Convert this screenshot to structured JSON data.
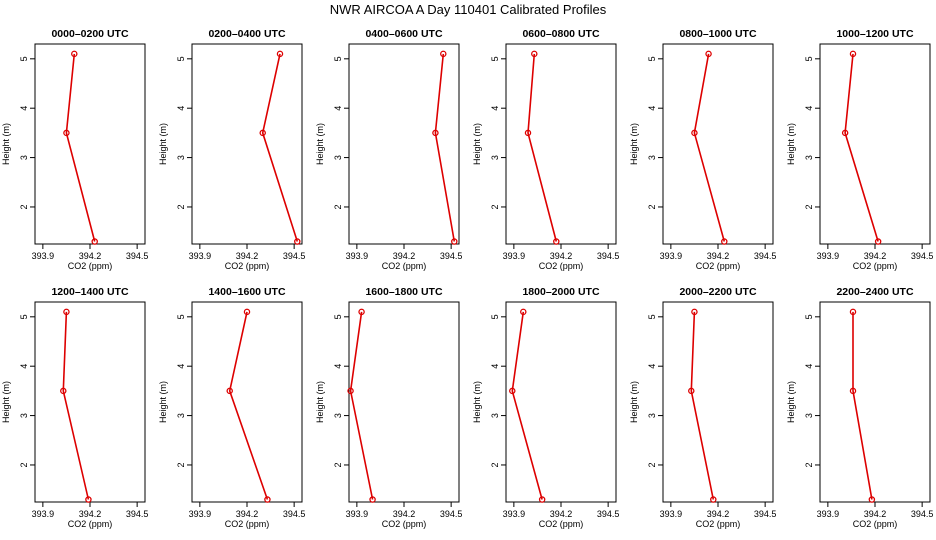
{
  "title": "NWR AIRCOA A  Day 110401  Calibrated Profiles",
  "colors": {
    "series": "#dd0000",
    "axes": "#000000",
    "background": "#ffffff"
  },
  "chart_data": [
    {
      "type": "line",
      "title": "0000–0200 UTC",
      "xlabel": "CO2 (ppm)",
      "ylabel": "Height (m)",
      "xlim": [
        393.85,
        394.55
      ],
      "ylim": [
        1.25,
        5.3
      ],
      "xticks": [
        "393.9",
        "394.2",
        "394.5"
      ],
      "yticks": [
        "2",
        "3",
        "4",
        "5"
      ],
      "series": [
        {
          "x": [
            394.23,
            394.05,
            394.1
          ],
          "y": [
            1.3,
            3.5,
            5.1
          ]
        }
      ]
    },
    {
      "type": "line",
      "title": "0200–0400 UTC",
      "xlabel": "CO2 (ppm)",
      "ylabel": "Height (m)",
      "xlim": [
        393.85,
        394.55
      ],
      "ylim": [
        1.25,
        5.3
      ],
      "xticks": [
        "393.9",
        "394.2",
        "394.5"
      ],
      "yticks": [
        "2",
        "3",
        "4",
        "5"
      ],
      "series": [
        {
          "x": [
            394.52,
            394.3,
            394.41
          ],
          "y": [
            1.3,
            3.5,
            5.1
          ]
        }
      ]
    },
    {
      "type": "line",
      "title": "0400–0600 UTC",
      "xlabel": "CO2 (ppm)",
      "ylabel": "Height (m)",
      "xlim": [
        393.85,
        394.55
      ],
      "ylim": [
        1.25,
        5.3
      ],
      "xticks": [
        "393.9",
        "394.2",
        "394.5"
      ],
      "yticks": [
        "2",
        "3",
        "4",
        "5"
      ],
      "series": [
        {
          "x": [
            394.52,
            394.4,
            394.45
          ],
          "y": [
            1.3,
            3.5,
            5.1
          ]
        }
      ]
    },
    {
      "type": "line",
      "title": "0600–0800 UTC",
      "xlabel": "CO2 (ppm)",
      "ylabel": "Height (m)",
      "xlim": [
        393.85,
        394.55
      ],
      "ylim": [
        1.25,
        5.3
      ],
      "xticks": [
        "393.9",
        "394.2",
        "394.5"
      ],
      "yticks": [
        "2",
        "3",
        "4",
        "5"
      ],
      "series": [
        {
          "x": [
            394.17,
            393.99,
            394.03
          ],
          "y": [
            1.3,
            3.5,
            5.1
          ]
        }
      ]
    },
    {
      "type": "line",
      "title": "0800–1000 UTC",
      "xlabel": "CO2 (ppm)",
      "ylabel": "Height (m)",
      "xlim": [
        393.85,
        394.55
      ],
      "ylim": [
        1.25,
        5.3
      ],
      "xticks": [
        "393.9",
        "394.2",
        "394.5"
      ],
      "yticks": [
        "2",
        "3",
        "4",
        "5"
      ],
      "series": [
        {
          "x": [
            394.24,
            394.05,
            394.14
          ],
          "y": [
            1.3,
            3.5,
            5.1
          ]
        }
      ]
    },
    {
      "type": "line",
      "title": "1000–1200 UTC",
      "xlabel": "CO2 (ppm)",
      "ylabel": "Height (m)",
      "xlim": [
        393.85,
        394.55
      ],
      "ylim": [
        1.25,
        5.3
      ],
      "xticks": [
        "393.9",
        "394.2",
        "394.5"
      ],
      "yticks": [
        "2",
        "3",
        "4",
        "5"
      ],
      "series": [
        {
          "x": [
            394.22,
            394.01,
            394.06
          ],
          "y": [
            1.3,
            3.5,
            5.1
          ]
        }
      ]
    },
    {
      "type": "line",
      "title": "1200–1400 UTC",
      "xlabel": "CO2 (ppm)",
      "ylabel": "Height (m)",
      "xlim": [
        393.85,
        394.55
      ],
      "ylim": [
        1.25,
        5.3
      ],
      "xticks": [
        "393.9",
        "394.2",
        "394.5"
      ],
      "yticks": [
        "2",
        "3",
        "4",
        "5"
      ],
      "series": [
        {
          "x": [
            394.19,
            394.03,
            394.05
          ],
          "y": [
            1.3,
            3.5,
            5.1
          ]
        }
      ]
    },
    {
      "type": "line",
      "title": "1400–1600 UTC",
      "xlabel": "CO2 (ppm)",
      "ylabel": "Height (m)",
      "xlim": [
        393.85,
        394.55
      ],
      "ylim": [
        1.25,
        5.3
      ],
      "xticks": [
        "393.9",
        "394.2",
        "394.5"
      ],
      "yticks": [
        "2",
        "3",
        "4",
        "5"
      ],
      "series": [
        {
          "x": [
            394.33,
            394.09,
            394.2
          ],
          "y": [
            1.3,
            3.5,
            5.1
          ]
        }
      ]
    },
    {
      "type": "line",
      "title": "1600–1800 UTC",
      "xlabel": "CO2 (ppm)",
      "ylabel": "Height (m)",
      "xlim": [
        393.85,
        394.55
      ],
      "ylim": [
        1.25,
        5.3
      ],
      "xticks": [
        "393.9",
        "394.2",
        "394.5"
      ],
      "yticks": [
        "2",
        "3",
        "4",
        "5"
      ],
      "series": [
        {
          "x": [
            394.0,
            393.86,
            393.93
          ],
          "y": [
            1.3,
            3.5,
            5.1
          ]
        }
      ]
    },
    {
      "type": "line",
      "title": "1800–2000 UTC",
      "xlabel": "CO2 (ppm)",
      "ylabel": "Height (m)",
      "xlim": [
        393.85,
        394.55
      ],
      "ylim": [
        1.25,
        5.3
      ],
      "xticks": [
        "393.9",
        "394.2",
        "394.5"
      ],
      "yticks": [
        "2",
        "3",
        "4",
        "5"
      ],
      "series": [
        {
          "x": [
            394.08,
            393.89,
            393.96
          ],
          "y": [
            1.3,
            3.5,
            5.1
          ]
        }
      ]
    },
    {
      "type": "line",
      "title": "2000–2200 UTC",
      "xlabel": "CO2 (ppm)",
      "ylabel": "Height (m)",
      "xlim": [
        393.85,
        394.55
      ],
      "ylim": [
        1.25,
        5.3
      ],
      "xticks": [
        "393.9",
        "394.2",
        "394.5"
      ],
      "yticks": [
        "2",
        "3",
        "4",
        "5"
      ],
      "series": [
        {
          "x": [
            394.17,
            394.03,
            394.05
          ],
          "y": [
            1.3,
            3.5,
            5.1
          ]
        }
      ]
    },
    {
      "type": "line",
      "title": "2200–2400 UTC",
      "xlabel": "CO2 (ppm)",
      "ylabel": "Height (m)",
      "xlim": [
        393.85,
        394.55
      ],
      "ylim": [
        1.25,
        5.3
      ],
      "xticks": [
        "393.9",
        "394.2",
        "394.5"
      ],
      "yticks": [
        "2",
        "3",
        "4",
        "5"
      ],
      "series": [
        {
          "x": [
            394.18,
            394.06,
            394.06
          ],
          "y": [
            1.3,
            3.5,
            5.1
          ]
        }
      ]
    }
  ]
}
